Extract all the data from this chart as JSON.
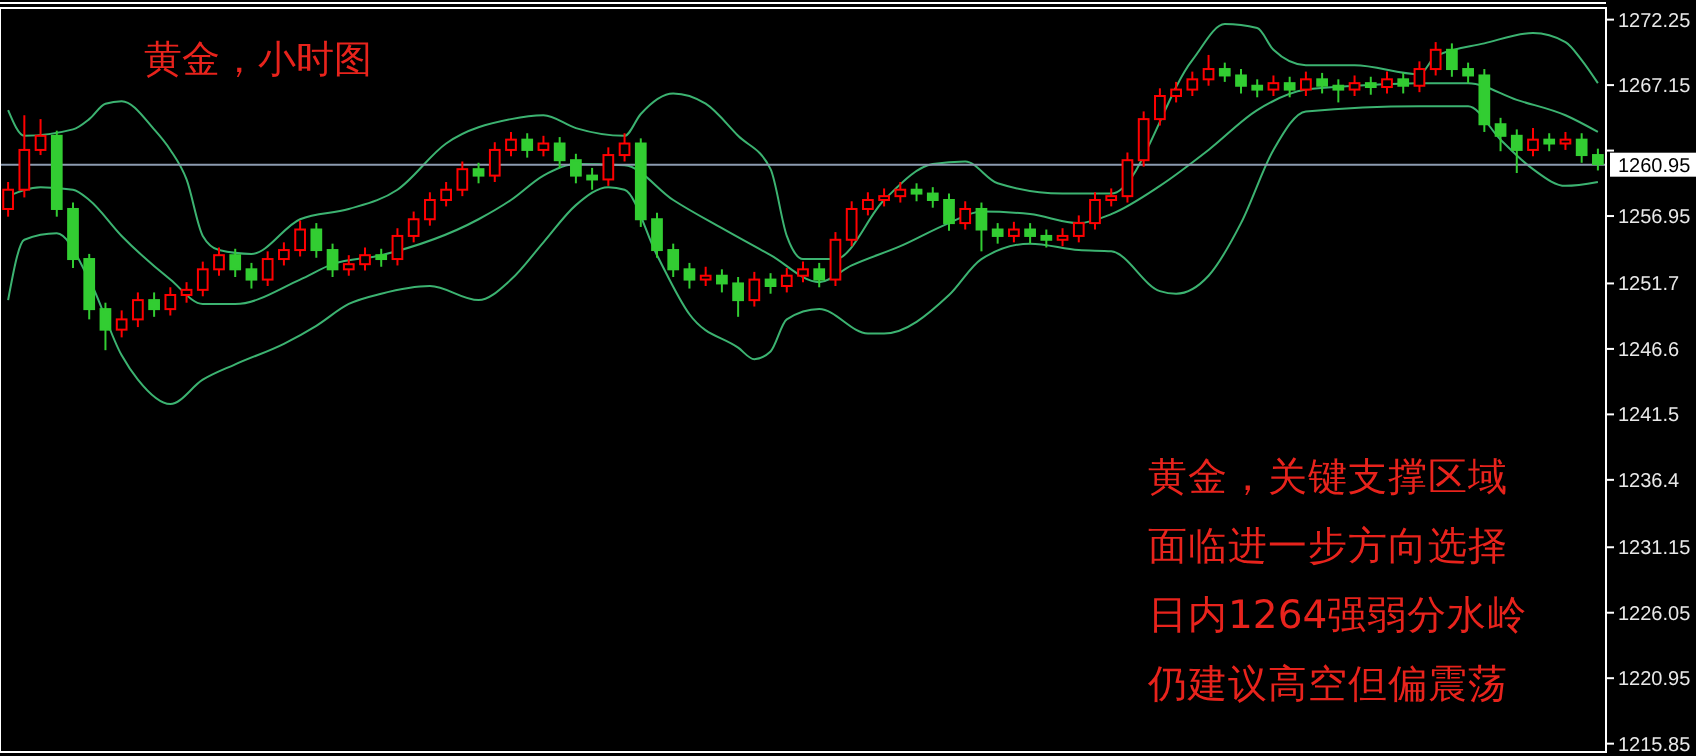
{
  "chart_data": {
    "type": "candlestick",
    "title": "黄金，小时图",
    "annotations": [
      "黄金，关键支撑区域",
      "面临进一步方向选择",
      "日内1264强弱分水岭",
      "仍建议高空但偏震荡"
    ],
    "categories": [
      null,
      null,
      null,
      null,
      null,
      null,
      null,
      null,
      null,
      null,
      null,
      null,
      null,
      null,
      null,
      null,
      null,
      null,
      null,
      null,
      null,
      null,
      null,
      null,
      null,
      null,
      null,
      null,
      null,
      null,
      null,
      null,
      null,
      null,
      null,
      null,
      null,
      null,
      null,
      null,
      null,
      null,
      null,
      null,
      null,
      null,
      null,
      null,
      null,
      null,
      null,
      null,
      null,
      null,
      null,
      null,
      null,
      null,
      null,
      null,
      null,
      null,
      null,
      null,
      null,
      null,
      null,
      null,
      null,
      null,
      null,
      null,
      null,
      null,
      null,
      null,
      null,
      null,
      null,
      null,
      null,
      null,
      null,
      null,
      null,
      null,
      null,
      null,
      null,
      null,
      null,
      null,
      null,
      null,
      null,
      null,
      null,
      null,
      null
    ],
    "ohlc": [
      [
        1257.5,
        1259.6,
        1256.9,
        1259.0
      ],
      [
        1259.0,
        1264.8,
        1258.4,
        1262.1
      ],
      [
        1262.1,
        1264.5,
        1261.7,
        1263.2
      ],
      [
        1263.2,
        1263.6,
        1256.9,
        1257.5
      ],
      [
        1257.5,
        1258.0,
        1252.9,
        1253.6
      ],
      [
        1253.6,
        1254.0,
        1248.9,
        1249.7
      ],
      [
        1249.7,
        1250.2,
        1246.5,
        1248.1
      ],
      [
        1248.1,
        1249.6,
        1247.5,
        1248.9
      ],
      [
        1248.9,
        1251.0,
        1248.3,
        1250.4
      ],
      [
        1250.4,
        1251.0,
        1249.1,
        1249.7
      ],
      [
        1249.7,
        1251.4,
        1249.2,
        1250.8
      ],
      [
        1250.8,
        1251.8,
        1250.2,
        1251.2
      ],
      [
        1251.2,
        1253.4,
        1250.7,
        1252.8
      ],
      [
        1252.8,
        1254.5,
        1252.3,
        1253.9
      ],
      [
        1253.9,
        1254.4,
        1252.2,
        1252.8
      ],
      [
        1252.8,
        1253.3,
        1251.3,
        1252.0
      ],
      [
        1252.0,
        1254.2,
        1251.5,
        1253.6
      ],
      [
        1253.6,
        1254.9,
        1253.1,
        1254.3
      ],
      [
        1254.3,
        1256.6,
        1253.8,
        1255.9
      ],
      [
        1255.9,
        1256.4,
        1253.7,
        1254.3
      ],
      [
        1254.3,
        1254.8,
        1252.2,
        1252.8
      ],
      [
        1252.8,
        1253.9,
        1252.3,
        1253.2
      ],
      [
        1253.2,
        1254.5,
        1252.7,
        1253.9
      ],
      [
        1253.9,
        1254.4,
        1253.0,
        1253.6
      ],
      [
        1253.6,
        1256.0,
        1253.1,
        1255.4
      ],
      [
        1255.4,
        1257.3,
        1254.9,
        1256.7
      ],
      [
        1256.7,
        1258.8,
        1256.2,
        1258.2
      ],
      [
        1258.2,
        1259.6,
        1257.7,
        1259.0
      ],
      [
        1259.0,
        1261.2,
        1258.5,
        1260.6
      ],
      [
        1260.6,
        1261.1,
        1259.5,
        1260.1
      ],
      [
        1260.1,
        1262.7,
        1259.6,
        1262.1
      ],
      [
        1262.1,
        1263.5,
        1261.6,
        1262.9
      ],
      [
        1262.9,
        1263.4,
        1261.5,
        1262.1
      ],
      [
        1262.1,
        1263.2,
        1261.6,
        1262.6
      ],
      [
        1262.6,
        1263.1,
        1260.7,
        1261.3
      ],
      [
        1261.3,
        1261.8,
        1259.5,
        1260.1
      ],
      [
        1260.1,
        1260.7,
        1259.0,
        1259.8
      ],
      [
        1259.8,
        1262.3,
        1259.3,
        1261.7
      ],
      [
        1261.7,
        1263.4,
        1261.2,
        1262.6
      ],
      [
        1262.6,
        1263.0,
        1256.1,
        1256.7
      ],
      [
        1256.7,
        1257.2,
        1253.7,
        1254.3
      ],
      [
        1254.3,
        1254.8,
        1252.2,
        1252.8
      ],
      [
        1252.8,
        1253.3,
        1251.3,
        1252.0
      ],
      [
        1252.0,
        1253.0,
        1251.5,
        1252.3
      ],
      [
        1252.3,
        1252.8,
        1251.0,
        1251.7
      ],
      [
        1251.7,
        1252.2,
        1249.1,
        1250.4
      ],
      [
        1250.4,
        1252.6,
        1249.9,
        1252.0
      ],
      [
        1252.0,
        1252.5,
        1250.9,
        1251.5
      ],
      [
        1251.5,
        1252.9,
        1251.0,
        1252.3
      ],
      [
        1252.3,
        1253.4,
        1251.8,
        1252.8
      ],
      [
        1252.8,
        1253.3,
        1251.4,
        1252.0
      ],
      [
        1252.0,
        1255.7,
        1251.5,
        1255.1
      ],
      [
        1255.1,
        1258.1,
        1254.6,
        1257.5
      ],
      [
        1257.5,
        1258.8,
        1257.0,
        1258.2
      ],
      [
        1258.2,
        1259.1,
        1257.7,
        1258.5
      ],
      [
        1258.5,
        1259.6,
        1258.0,
        1259.0
      ],
      [
        1259.0,
        1259.5,
        1258.1,
        1258.7
      ],
      [
        1258.7,
        1259.2,
        1257.6,
        1258.2
      ],
      [
        1258.2,
        1258.7,
        1255.8,
        1256.4
      ],
      [
        1256.4,
        1258.1,
        1255.9,
        1257.5
      ],
      [
        1257.5,
        1258.0,
        1254.2,
        1255.9
      ],
      [
        1255.9,
        1256.4,
        1254.8,
        1255.4
      ],
      [
        1255.4,
        1256.5,
        1254.9,
        1255.9
      ],
      [
        1255.9,
        1256.4,
        1254.8,
        1255.4
      ],
      [
        1255.4,
        1255.9,
        1254.5,
        1255.1
      ],
      [
        1255.1,
        1256.0,
        1254.6,
        1255.4
      ],
      [
        1255.4,
        1257.0,
        1254.9,
        1256.4
      ],
      [
        1256.4,
        1258.8,
        1255.9,
        1258.2
      ],
      [
        1258.2,
        1259.1,
        1257.7,
        1258.5
      ],
      [
        1258.5,
        1261.9,
        1258.0,
        1261.3
      ],
      [
        1261.3,
        1265.1,
        1260.8,
        1264.5
      ],
      [
        1264.5,
        1266.9,
        1264.0,
        1266.3
      ],
      [
        1266.3,
        1267.4,
        1265.8,
        1266.8
      ],
      [
        1266.8,
        1268.2,
        1266.3,
        1267.6
      ],
      [
        1267.6,
        1269.5,
        1267.1,
        1268.4
      ],
      [
        1268.4,
        1268.9,
        1267.4,
        1267.9
      ],
      [
        1267.9,
        1268.4,
        1266.5,
        1267.1
      ],
      [
        1267.1,
        1267.6,
        1266.2,
        1266.8
      ],
      [
        1266.8,
        1267.9,
        1266.3,
        1267.3
      ],
      [
        1267.3,
        1267.8,
        1266.2,
        1266.8
      ],
      [
        1266.8,
        1268.2,
        1266.3,
        1267.6
      ],
      [
        1267.6,
        1268.1,
        1266.5,
        1267.1
      ],
      [
        1267.1,
        1267.6,
        1265.8,
        1266.8
      ],
      [
        1266.8,
        1267.9,
        1266.3,
        1267.3
      ],
      [
        1267.3,
        1267.8,
        1266.4,
        1267.0
      ],
      [
        1267.0,
        1268.2,
        1266.5,
        1267.6
      ],
      [
        1267.6,
        1268.1,
        1266.5,
        1267.1
      ],
      [
        1267.1,
        1269.0,
        1266.6,
        1268.4
      ],
      [
        1268.4,
        1270.5,
        1267.9,
        1269.9
      ],
      [
        1269.9,
        1270.4,
        1267.8,
        1268.4
      ],
      [
        1268.4,
        1268.9,
        1267.3,
        1267.9
      ],
      [
        1267.9,
        1268.4,
        1263.5,
        1264.1
      ],
      [
        1264.1,
        1264.6,
        1262.0,
        1263.2
      ],
      [
        1263.2,
        1263.7,
        1260.3,
        1262.1
      ],
      [
        1262.1,
        1263.8,
        1261.6,
        1262.9
      ],
      [
        1262.9,
        1263.4,
        1262.0,
        1262.6
      ],
      [
        1262.6,
        1263.5,
        1262.1,
        1262.9
      ],
      [
        1262.9,
        1263.4,
        1261.1,
        1261.7
      ],
      [
        1261.7,
        1262.2,
        1260.5,
        1261.0
      ]
    ],
    "colors": [
      "#ff0000",
      "#ff0000",
      "#ff0000",
      "#32cd32",
      "#32cd32",
      "#32cd32",
      "#32cd32",
      "#ff0000",
      "#ff0000",
      "#32cd32",
      "#ff0000",
      "#ff0000",
      "#ff0000",
      "#ff0000",
      "#32cd32",
      "#32cd32",
      "#ff0000",
      "#ff0000",
      "#ff0000",
      "#32cd32",
      "#32cd32",
      "#ff0000",
      "#ff0000",
      "#32cd32",
      "#ff0000",
      "#ff0000",
      "#ff0000",
      "#ff0000",
      "#ff0000",
      "#32cd32",
      "#ff0000",
      "#ff0000",
      "#32cd32",
      "#ff0000",
      "#32cd32",
      "#32cd32",
      "#32cd32",
      "#ff0000",
      "#ff0000",
      "#32cd32",
      "#32cd32",
      "#32cd32",
      "#32cd32",
      "#ff0000",
      "#32cd32",
      "#32cd32",
      "#ff0000",
      "#32cd32",
      "#ff0000",
      "#ff0000",
      "#32cd32",
      "#ff0000",
      "#ff0000",
      "#ff0000",
      "#ff0000",
      "#ff0000",
      "#32cd32",
      "#32cd32",
      "#32cd32",
      "#ff0000",
      "#32cd32",
      "#32cd32",
      "#ff0000",
      "#32cd32",
      "#32cd32",
      "#ff0000",
      "#ff0000",
      "#ff0000",
      "#ff0000",
      "#ff0000",
      "#ff0000",
      "#ff0000",
      "#ff0000",
      "#ff0000",
      "#ff0000",
      "#32cd32",
      "#32cd32",
      "#32cd32",
      "#ff0000",
      "#32cd32",
      "#ff0000",
      "#32cd32",
      "#32cd32",
      "#ff0000",
      "#32cd32",
      "#ff0000",
      "#32cd32",
      "#ff0000",
      "#ff0000",
      "#32cd32",
      "#32cd32",
      "#32cd32",
      "#32cd32",
      "#32cd32",
      "#ff0000",
      "#32cd32",
      "#ff0000",
      "#32cd32",
      "#32cd32"
    ],
    "series": [
      {
        "type": "line",
        "color": "#3cb371",
        "values": [
          1265.2,
          1263.2,
          null,
          null,
          1263.7,
          1264.5,
          1265.7,
          1265.9,
          null,
          1263.7,
          1262.1,
          1259.8,
          1255.4,
          1254.3,
          null,
          1254.0,
          null,
          null,
          1256.7,
          null,
          null,
          1257.5,
          null,
          null,
          1259.0,
          null,
          null,
          1262.6,
          null,
          null,
          null,
          1264.5,
          null,
          1264.8,
          null,
          1263.8,
          null,
          null,
          1263.2,
          1264.9,
          null,
          1266.5,
          null,
          1265.7,
          null,
          1263.2,
          null,
          1260.6,
          1255.4,
          1253.6,
          null,
          1253.6,
          null,
          null,
          1258.2,
          null,
          null,
          1261.0,
          null,
          1261.2,
          null,
          1259.5,
          null,
          null,
          null,
          1258.7,
          null,
          null,
          1258.7,
          null,
          null,
          null,
          null,
          1269.1,
          null,
          1271.9,
          null,
          1271.6,
          1269.9,
          null,
          1268.7,
          null,
          null,
          1268.7,
          null,
          null,
          null,
          1268.0,
          1269.4,
          null,
          null,
          1270.4,
          null,
          null,
          1271.2,
          null,
          1270.5,
          1269.1,
          1267.3
        ]
      },
      {
        "type": "line",
        "color": "#3cb371",
        "values": [
          1258.5,
          null,
          1259.2,
          null,
          1259.0,
          1258.2,
          null,
          1255.4,
          null,
          null,
          1252.0,
          null,
          1250.1,
          null,
          1250.1,
          null,
          null,
          null,
          1252.0,
          null,
          1253.2,
          null,
          null,
          1253.9,
          null,
          null,
          null,
          null,
          null,
          1256.7,
          null,
          1258.2,
          null,
          1260.1,
          null,
          1261.0,
          null,
          null,
          1260.9,
          null,
          null,
          1258.2,
          null,
          null,
          1256.0,
          null,
          null,
          1253.9,
          null,
          null,
          1251.8,
          null,
          1253.1,
          null,
          null,
          1254.6,
          null,
          null,
          1256.4,
          null,
          1257.3,
          null,
          null,
          1257.1,
          null,
          null,
          1256.4,
          null,
          1257.1,
          null,
          null,
          1259.3,
          null,
          null,
          1262.1,
          null,
          null,
          1265.2,
          null,
          null,
          1266.8,
          null,
          null,
          1267.1,
          null,
          null,
          null,
          1267.3,
          null,
          null,
          1267.3,
          null,
          null,
          1266.0,
          null,
          null,
          1264.8,
          null,
          1263.5
        ]
      },
      {
        "type": "line",
        "color": "#3cb371",
        "values": [
          1250.4,
          1255.1,
          null,
          1255.6,
          null,
          1252.0,
          null,
          1246.1,
          1244.2,
          null,
          1242.3,
          null,
          1244.2,
          null,
          1245.4,
          null,
          null,
          1247.0,
          null,
          1248.4,
          null,
          1250.1,
          null,
          1250.9,
          null,
          null,
          1251.5,
          null,
          null,
          1250.4,
          null,
          1252.0,
          null,
          1254.9,
          null,
          1257.8,
          null,
          1259.2,
          1259.0,
          null,
          1253.9,
          null,
          1249.3,
          null,
          null,
          1246.7,
          1245.8,
          1246.4,
          1248.9,
          null,
          1249.7,
          null,
          null,
          1247.8,
          1247.8,
          null,
          null,
          null,
          1250.8,
          null,
          1253.6,
          null,
          null,
          1254.8,
          null,
          null,
          1254.3,
          null,
          1254.2,
          null,
          null,
          1251.1,
          1250.9,
          null,
          1252.3,
          null,
          1256.4,
          null,
          1262.1,
          null,
          1265.1,
          null,
          null,
          null,
          null,
          null,
          null,
          1265.5,
          null,
          null,
          1265.5,
          null,
          1262.9,
          null,
          1260.6,
          null,
          1259.3,
          null,
          1259.6
        ]
      }
    ],
    "ylim": [
      1215.2,
      1273.0
    ],
    "yticks": [
      1215.85,
      1220.95,
      1226.05,
      1231.15,
      1236.4,
      1241.5,
      1246.6,
      1251.7,
      1256.95,
      {
        "value": 1262.05,
        "label": null
      },
      1267.15,
      1272.25
    ],
    "ref_lines": [
      {
        "axis": "y",
        "value": 1260.95,
        "label": "1260.95",
        "color": "#8c9bb0"
      }
    ],
    "tick_labels": "y"
  }
}
